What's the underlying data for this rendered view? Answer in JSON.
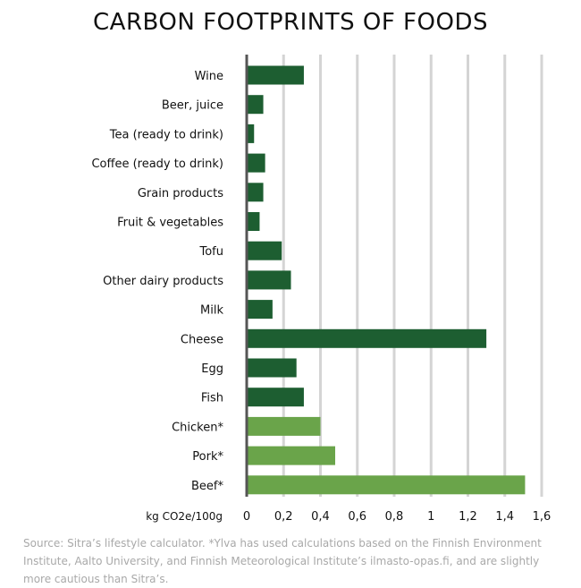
{
  "title": "CARBON FOOTPRINTS OF FOODS",
  "source_note": "Source: Sitra’s lifestyle calculator. *Ylva has used calculations based on the Finnish Environment Institute, Aalto University, and Finnish Meteorological Institute’s ilmasto-opas.fi, and are slightly more cautious than Sitra’s.",
  "colors": {
    "dark_green": "#1d5e31",
    "light_green": "#6aa44a",
    "gridline": "#d4d4d4",
    "axis": "#555555",
    "text": "#111111",
    "source_text": "#a9a9a9"
  },
  "chart_data": {
    "type": "bar",
    "orientation": "horizontal",
    "title": "CARBON FOOTPRINTS OF FOODS",
    "xlabel": "kg CO2e/100g",
    "ylabel": "",
    "xlim": [
      0,
      1.6
    ],
    "grid": true,
    "ticks": [
      0,
      0.2,
      0.4,
      0.6,
      0.8,
      1,
      1.2,
      1.4,
      1.6
    ],
    "tick_labels": [
      "0",
      "0,2",
      "0,4",
      "0,6",
      "0,8",
      "1",
      "1,2",
      "1,4",
      "1,6"
    ],
    "categories": [
      "Wine",
      "Beer, juice",
      "Tea (ready to drink)",
      "Coffee (ready to drink)",
      "Grain products",
      "Fruit & vegetables",
      "Tofu",
      "Other dairy products",
      "Milk",
      "Cheese",
      "Egg",
      "Fish",
      "Chicken*",
      "Pork*",
      "Beef*"
    ],
    "values": [
      0.31,
      0.09,
      0.04,
      0.1,
      0.09,
      0.07,
      0.19,
      0.24,
      0.14,
      1.3,
      0.27,
      0.31,
      0.4,
      0.48,
      1.51
    ],
    "bar_color_group": [
      "dark",
      "dark",
      "dark",
      "dark",
      "dark",
      "dark",
      "dark",
      "dark",
      "dark",
      "dark",
      "dark",
      "dark",
      "light",
      "light",
      "light"
    ]
  }
}
